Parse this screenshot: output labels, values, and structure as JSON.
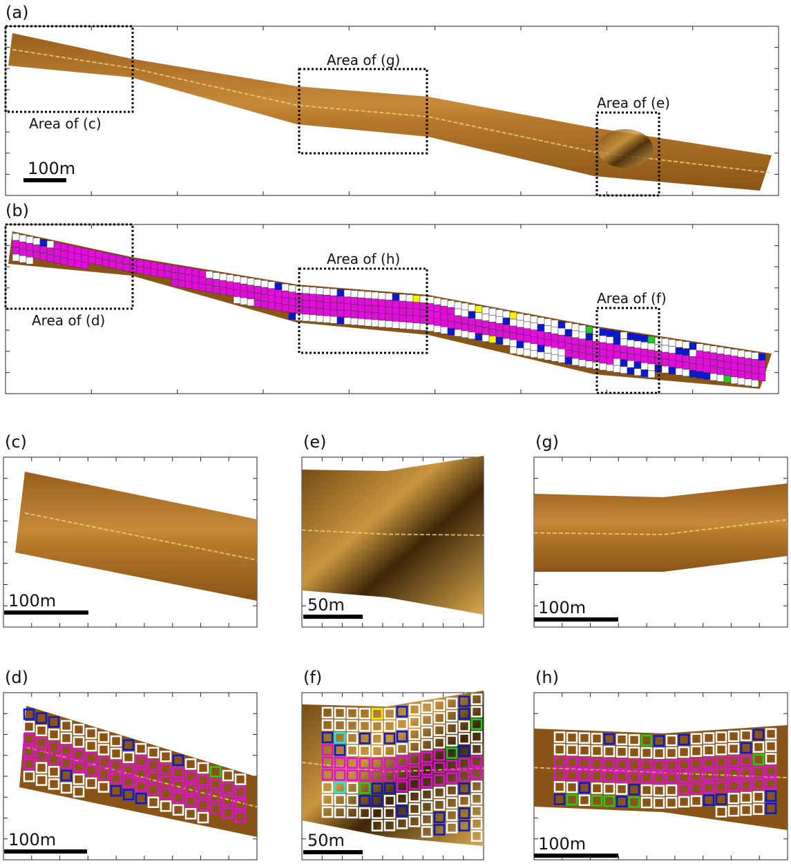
{
  "panels": [
    {
      "label": "(a)",
      "scale_bar": "100m",
      "areas": [
        "Area of (c)",
        "Area of (g)",
        "Area of (e)"
      ]
    },
    {
      "label": "(b)",
      "areas": [
        "Area of (d)",
        "Area of (h)",
        "Area of (f)"
      ]
    },
    {
      "label": "(c)",
      "scale_bar": "100m"
    },
    {
      "label": "(e)",
      "scale_bar": "50m"
    },
    {
      "label": "(g)",
      "scale_bar": "100m"
    },
    {
      "label": "(d)",
      "scale_bar": "100m"
    },
    {
      "label": "(f)",
      "scale_bar": "50m"
    },
    {
      "label": "(h)",
      "scale_bar": "100m"
    }
  ]
}
